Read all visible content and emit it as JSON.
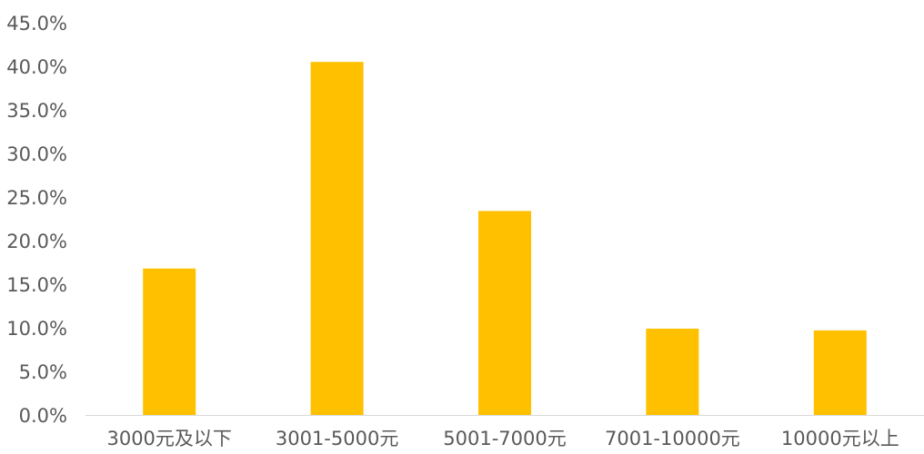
{
  "chart_data": {
    "type": "bar",
    "categories": [
      "3000元及以下",
      "3001-5000元",
      "5001-7000元",
      "7001-10000元",
      "10000元以上"
    ],
    "values": [
      16.8,
      40.5,
      23.4,
      9.9,
      9.7
    ],
    "y_ticks": [
      "0.0%",
      "5.0%",
      "10.0%",
      "15.0%",
      "20.0%",
      "25.0%",
      "30.0%",
      "35.0%",
      "40.0%",
      "45.0%"
    ],
    "ylim": [
      0,
      45
    ],
    "y_unit": "%",
    "grid": false,
    "legend": "none",
    "bar_color": "#FFC000",
    "axis_color": "#D9D9D9",
    "label_color": "#595959"
  }
}
